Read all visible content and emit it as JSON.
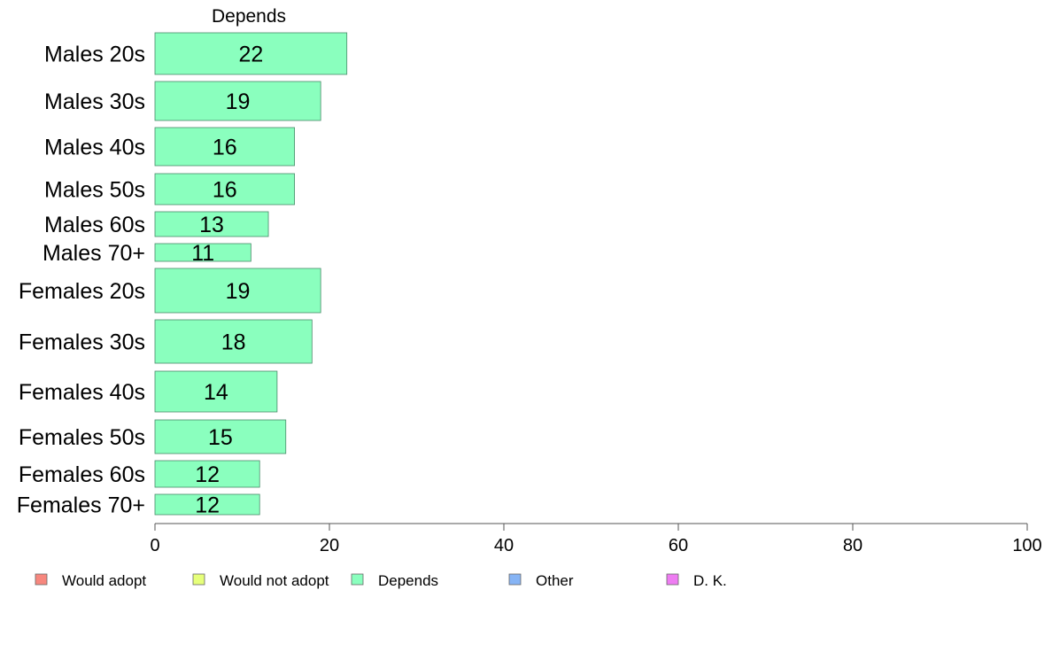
{
  "chart_data": {
    "type": "bar",
    "orientation": "horizontal",
    "title": "Depends",
    "categories": [
      "Males 20s",
      "Males 30s",
      "Males 40s",
      "Males 50s",
      "Males 60s",
      "Males 70+",
      "Females 20s",
      "Females 30s",
      "Females 40s",
      "Females 50s",
      "Females 60s",
      "Females 70+"
    ],
    "values": [
      22,
      19,
      16,
      16,
      13,
      11,
      19,
      18,
      14,
      15,
      12,
      12
    ],
    "value_labels": [
      "22",
      "19",
      "16",
      "16",
      "13",
      "11",
      "19",
      "18",
      "14",
      "15",
      "12",
      "12"
    ],
    "xlim": [
      0,
      100
    ],
    "xticks": [
      0,
      20,
      40,
      60,
      80,
      100
    ],
    "xtick_labels": [
      "0",
      "20",
      "40",
      "60",
      "80",
      "100"
    ],
    "bar_color": "#8affbe",
    "legend_position": "bottom",
    "legend": [
      {
        "label": "Would adopt",
        "color": "#f7877e"
      },
      {
        "label": "Would not adopt",
        "color": "#e6ff7a"
      },
      {
        "label": "Depends",
        "color": "#8affbe"
      },
      {
        "label": "Other",
        "color": "#86b4f5"
      },
      {
        "label": "D. K.",
        "color": "#ee7cf2"
      }
    ]
  }
}
